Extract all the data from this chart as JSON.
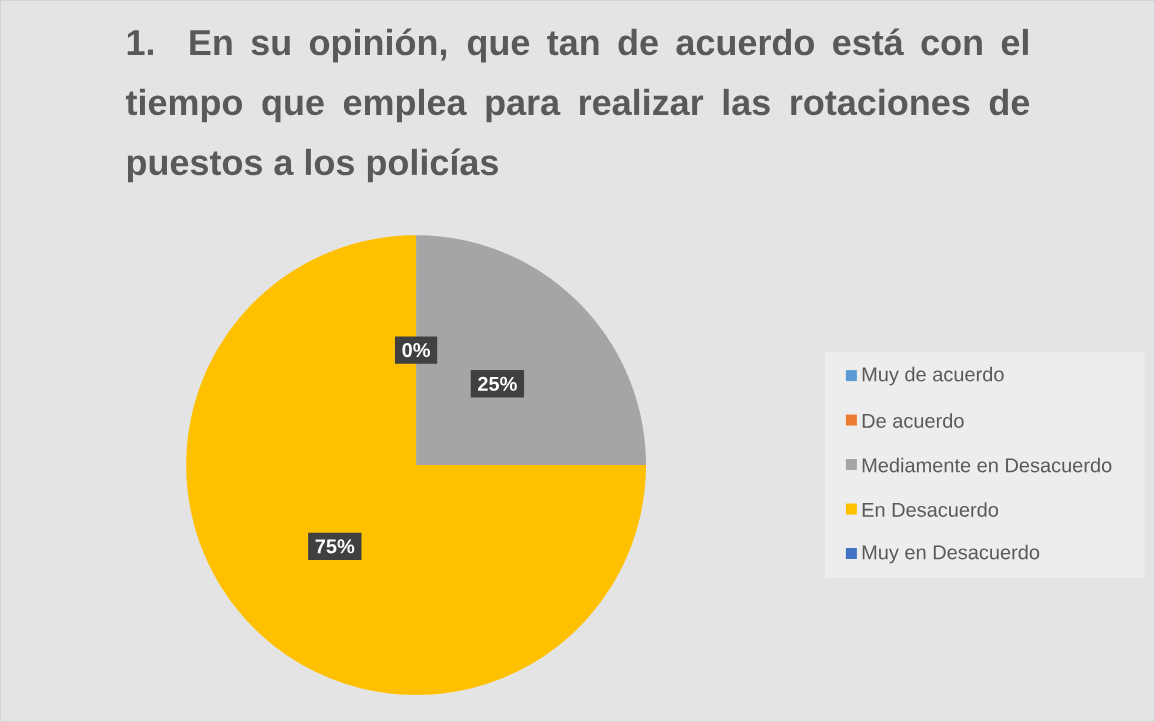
{
  "chart_data": {
    "type": "pie",
    "title": "1. En su opinión, que tan de acuerdo está con el tiempo que emplea para realizar las rotaciones de puestos a los policías",
    "categories": [
      "Muy de acuerdo",
      "De acuerdo",
      "Mediamente en Desacuerdo",
      "En Desacuerdo",
      "Muy en Desacuerdo"
    ],
    "values": [
      0,
      0,
      25,
      75,
      0
    ],
    "colors": [
      "#5b9bd5",
      "#ed7d31",
      "#a5a5a5",
      "#ffc000",
      "#4472c4"
    ],
    "value_labels": [
      "0%",
      null,
      "25%",
      "75%",
      null
    ],
    "legend": "right"
  }
}
